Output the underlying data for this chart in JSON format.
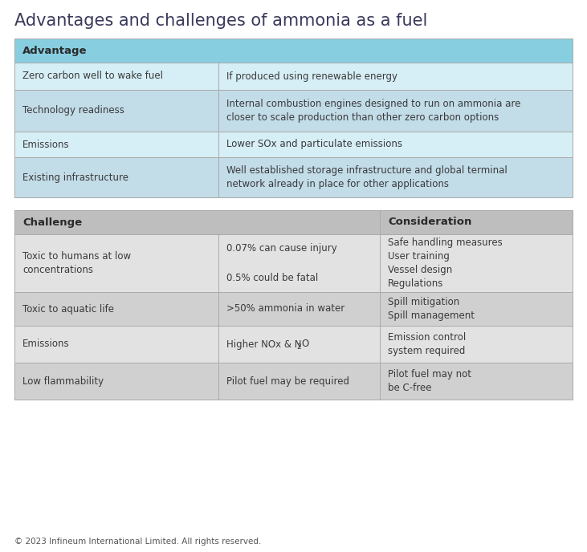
{
  "title": "Advantages and challenges of ammonia as a fuel",
  "title_color": "#3a3a5c",
  "title_fontsize": 15,
  "bg_color": "#ffffff",
  "adv_header_bg": "#87cee0",
  "adv_header_text": "Advantage",
  "adv_row_bg_light": "#d6eef5",
  "adv_row_bg_dark": "#c2dce8",
  "adv_col_split": 0.365,
  "adv_rows": [
    [
      "Zero carbon well to wake fuel",
      "If produced using renewable energy"
    ],
    [
      "Technology readiness",
      "Internal combustion engines designed to run on ammonia are\ncloser to scale production than other zero carbon options"
    ],
    [
      "Emissions",
      "Lower SOx and particulate emissions"
    ],
    [
      "Existing infrastructure",
      "Well established storage infrastructure and global terminal\nnetwork already in place for other applications"
    ]
  ],
  "chal_header_bg": "#bebebe",
  "chal_col1_header": "Challenge",
  "chal_col3_header": "Consideration",
  "chal_row_bg_light": "#e2e2e2",
  "chal_row_bg_dark": "#d0d0d0",
  "chal_col_splits": [
    0.365,
    0.655
  ],
  "chal_rows": [
    [
      "Toxic to humans at low\nconcentrations",
      "0.07% can cause injury\n\n0.5% could be fatal",
      "Safe handling measures\nUser training\nVessel design\nRegulations"
    ],
    [
      "Toxic to aquatic life",
      ">50% ammonia in water",
      "Spill mitigation\nSpill management"
    ],
    [
      "Emissions",
      "Higher NOx & N₂O",
      "Emission control\nsystem required"
    ],
    [
      "Low flammability",
      "Pilot fuel may be required",
      "Pilot fuel may not\nbe C-free"
    ]
  ],
  "text_color": "#3a3a3a",
  "header_text_color": "#2a2a2a",
  "border_color": "#aaaaaa",
  "footer_text": "© 2023 Infineum International Limited. All rights reserved.",
  "footer_fontsize": 7.5
}
